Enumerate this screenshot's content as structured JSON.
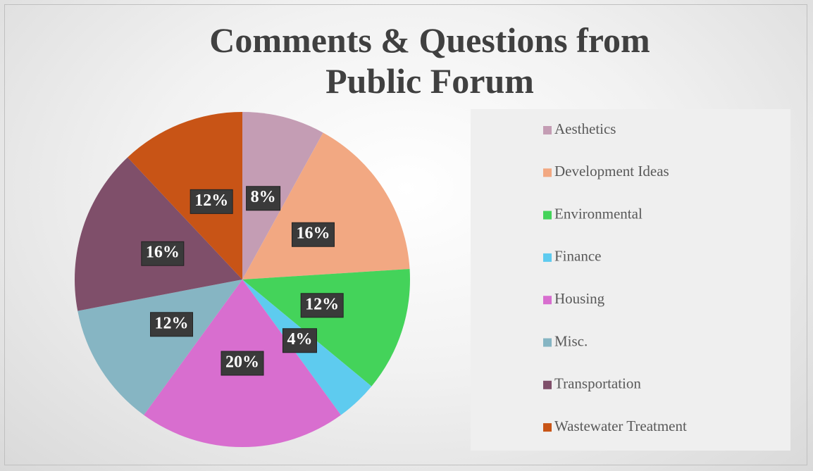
{
  "chart_data": {
    "type": "pie",
    "title": "Comments & Questions from Public Forum",
    "categories": [
      "Aesthetics",
      "Development Ideas",
      "Environmental",
      "Finance",
      "Housing",
      "Misc.",
      "Transportation",
      "Wastewater Treatment"
    ],
    "values": [
      8,
      16,
      12,
      4,
      20,
      12,
      16,
      12
    ],
    "value_labels": [
      "8%",
      "16%",
      "12%",
      "4%",
      "20%",
      "12%",
      "16%",
      "12%"
    ],
    "colors": [
      "#c49db4",
      "#f2a882",
      "#44d35a",
      "#5ecbef",
      "#d86ecf",
      "#86b5c3",
      "#7f4f6a",
      "#c85416"
    ],
    "legend": "right"
  }
}
